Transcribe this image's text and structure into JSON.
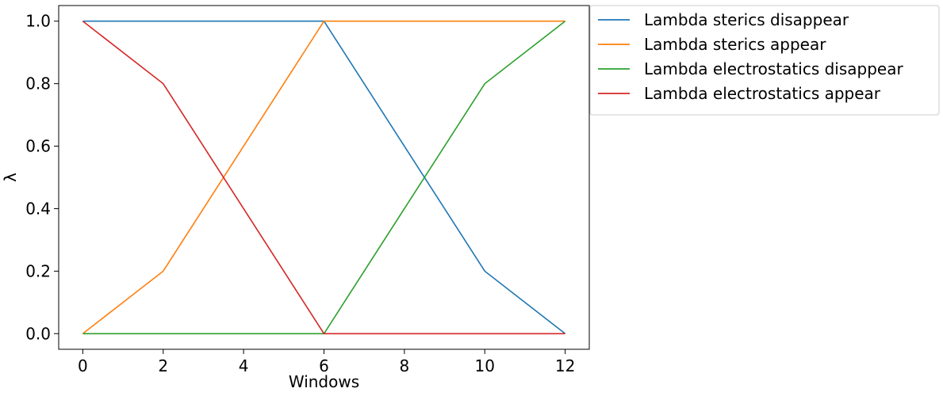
{
  "chart_data": {
    "type": "line",
    "xlabel": "Windows",
    "ylabel": "λ",
    "xlim": [
      -0.6,
      12.6
    ],
    "ylim": [
      -0.05,
      1.05
    ],
    "xticks": [
      0,
      2,
      4,
      6,
      8,
      10,
      12
    ],
    "yticks": [
      0.0,
      0.2,
      0.4,
      0.6,
      0.8,
      1.0
    ],
    "xtick_labels": [
      "0",
      "2",
      "4",
      "6",
      "8",
      "10",
      "12"
    ],
    "ytick_labels": [
      "0.0",
      "0.2",
      "0.4",
      "0.6",
      "0.8",
      "1.0"
    ],
    "grid": false,
    "legend_position": "outside-top-right",
    "series": [
      {
        "name": "Lambda sterics disappear",
        "color": "#1f77b4",
        "x": [
          0,
          2,
          4,
          6,
          8,
          10,
          12
        ],
        "y": [
          1.0,
          1.0,
          1.0,
          1.0,
          0.6,
          0.2,
          0.0
        ]
      },
      {
        "name": "Lambda sterics appear",
        "color": "#ff7f0e",
        "x": [
          0,
          2,
          4,
          6,
          8,
          10,
          12
        ],
        "y": [
          0.0,
          0.2,
          0.6,
          1.0,
          1.0,
          1.0,
          1.0
        ]
      },
      {
        "name": "Lambda electrostatics disappear",
        "color": "#2ca02c",
        "x": [
          0,
          2,
          4,
          6,
          8,
          10,
          12
        ],
        "y": [
          0.0,
          0.0,
          0.0,
          0.0,
          0.4,
          0.8,
          1.0
        ]
      },
      {
        "name": "Lambda electrostatics appear",
        "color": "#d62728",
        "x": [
          0,
          2,
          4,
          6,
          8,
          10,
          12
        ],
        "y": [
          1.0,
          0.8,
          0.4,
          0.0,
          0.0,
          0.0,
          0.0
        ]
      }
    ]
  }
}
